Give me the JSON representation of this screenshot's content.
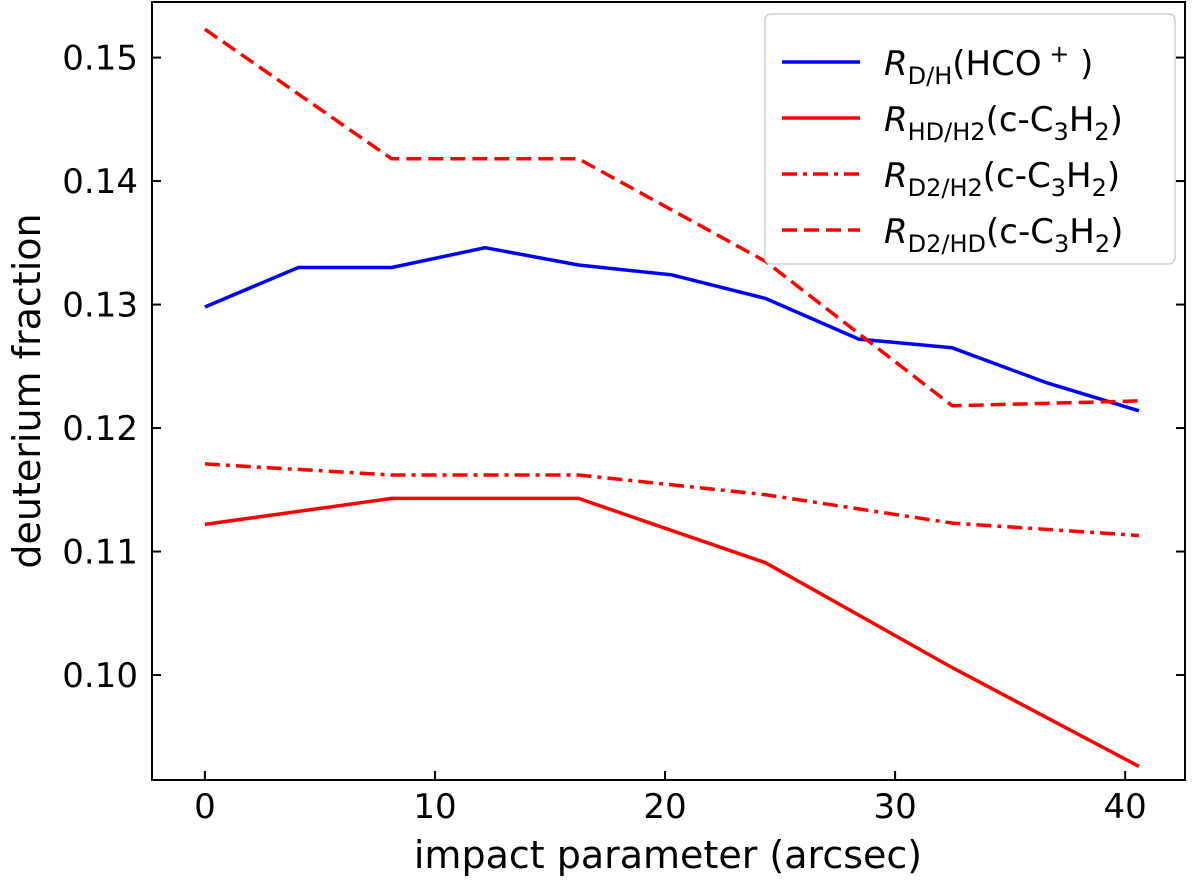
{
  "chart_data": {
    "type": "line",
    "title": "",
    "xlabel": "impact parameter (arcsec)",
    "ylabel": "deuterium fraction",
    "xlim": [
      -2.3,
      42.6
    ],
    "ylim": [
      0.0915,
      0.1545
    ],
    "xticks": [
      0,
      10,
      20,
      30,
      40
    ],
    "xtick_labels": [
      "0",
      "10",
      "20",
      "30",
      "40"
    ],
    "yticks": [
      0.1,
      0.11,
      0.12,
      0.13,
      0.14,
      0.15
    ],
    "ytick_labels": [
      "0.10",
      "0.11",
      "0.12",
      "0.13",
      "0.14",
      "0.15"
    ],
    "grid": false,
    "legend_position": "top-right",
    "series": [
      {
        "name": "R_D/H(HCO+)",
        "legend": {
          "symbol": "R",
          "sub": "D/H",
          "text": "(HCO",
          "sup": "+",
          "tail": ")"
        },
        "color": "#0000ff",
        "dash": "solid",
        "x": [
          0,
          4.06,
          8.12,
          12.18,
          16.24,
          20.3,
          24.36,
          28.42,
          32.48,
          36.54,
          40.6
        ],
        "y": [
          0.1298,
          0.133,
          0.133,
          0.1346,
          0.1332,
          0.1324,
          0.1305,
          0.1272,
          0.1265,
          0.1237,
          0.1214
        ]
      },
      {
        "name": "R_HD/H2(c-C3H2)",
        "legend": {
          "symbol": "R",
          "sub": "HD/H2",
          "text": "(c-C",
          "sub2": "3",
          "text2": "H",
          "sub3": "2",
          "tail": ")"
        },
        "color": "#ff0000",
        "dash": "solid",
        "x": [
          0,
          8.12,
          16.24,
          24.36,
          32.48,
          40.6
        ],
        "y": [
          0.1122,
          0.1143,
          0.1143,
          0.1091,
          0.1006,
          0.0926
        ]
      },
      {
        "name": "R_D2/H2(c-C3H2)",
        "legend": {
          "symbol": "R",
          "sub": "D2/H2",
          "text": "(c-C",
          "sub2": "3",
          "text2": "H",
          "sub3": "2",
          "tail": ")"
        },
        "color": "#ff0000",
        "dash": "dashdot",
        "x": [
          0,
          8.12,
          16.24,
          24.36,
          32.48,
          40.6
        ],
        "y": [
          0.1171,
          0.1162,
          0.1162,
          0.1146,
          0.1123,
          0.1113
        ]
      },
      {
        "name": "R_D2/HD(c-C3H2)",
        "legend": {
          "symbol": "R",
          "sub": "D2/HD",
          "text": "(c-C",
          "sub2": "3",
          "text2": "H",
          "sub3": "2",
          "tail": ")"
        },
        "color": "#ff0000",
        "dash": "dashed",
        "x": [
          0,
          8.12,
          16.24,
          24.36,
          32.48,
          40.6
        ],
        "y": [
          0.1523,
          0.1418,
          0.1418,
          0.1335,
          0.1218,
          0.1222
        ]
      }
    ]
  }
}
